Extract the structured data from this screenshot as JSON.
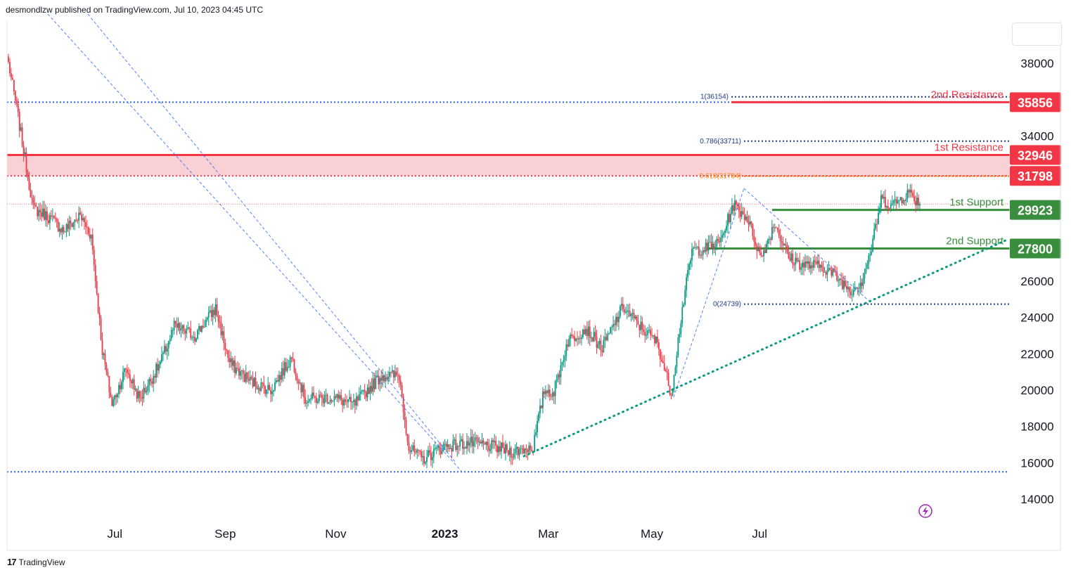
{
  "header": {
    "text": "desmondlzw published on TradingView.com, Jul 10, 2023 04:45 UTC"
  },
  "footer": {
    "logo": "17",
    "brand": "TradingView"
  },
  "colors": {
    "up": "#089981",
    "down": "#f23645",
    "support": "#388e3c",
    "resistance": "#f23645",
    "fib": "#1e53e5",
    "trend": "#089981",
    "zone": "#f8c9cd"
  },
  "chart_data": {
    "type": "candlestick",
    "ylim": [
      13000,
      40000
    ],
    "y_ticks": [
      14000,
      16000,
      18000,
      20000,
      22000,
      24000,
      26000,
      28000,
      30000,
      32000,
      34000,
      36000,
      38000
    ],
    "y_tick_labels": [
      "14000",
      "16000",
      "18000",
      "20000",
      "22000",
      "24000",
      "26000",
      "",
      "",
      "",
      "34000",
      "",
      "38000"
    ],
    "x_ticks": [
      {
        "label": "Jul",
        "bold": false
      },
      {
        "label": "Sep",
        "bold": false
      },
      {
        "label": "Nov",
        "bold": false
      },
      {
        "label": "2023",
        "bold": true
      },
      {
        "label": "Mar",
        "bold": false
      },
      {
        "label": "May",
        "bold": false
      },
      {
        "label": "Jul",
        "bold": false
      }
    ],
    "price_line_levels": [
      {
        "name": "2nd Resistance",
        "value": 35856,
        "label": "35856",
        "kind": "resistance"
      },
      {
        "name": "1st Resistance",
        "value": 32946,
        "label": "32946",
        "kind": "resistance"
      },
      {
        "name": "",
        "value": 31798,
        "label": "31798",
        "kind": "resistance"
      },
      {
        "name": "1st Support",
        "value": 29923,
        "label": "29923",
        "kind": "support"
      },
      {
        "name": "2nd Support",
        "value": 27800,
        "label": "27800",
        "kind": "support"
      }
    ],
    "fib_levels": [
      {
        "label": "1(36154)",
        "value": 36154
      },
      {
        "label": "0.786(33711)",
        "value": 33711
      },
      {
        "label": "0.618(31784)",
        "value": 31784
      },
      {
        "label": "0(24739)",
        "value": 24739
      }
    ],
    "support_low_level": 15500,
    "current_price": 30250,
    "anchors": [
      [
        0,
        38000
      ],
      [
        6,
        35500
      ],
      [
        18,
        30000
      ],
      [
        28,
        29600
      ],
      [
        40,
        28800
      ],
      [
        52,
        29600
      ],
      [
        60,
        28500
      ],
      [
        68,
        22200
      ],
      [
        75,
        19200
      ],
      [
        85,
        21200
      ],
      [
        95,
        19500
      ],
      [
        110,
        21500
      ],
      [
        120,
        23500
      ],
      [
        135,
        23000
      ],
      [
        150,
        24500
      ],
      [
        160,
        21500
      ],
      [
        175,
        20500
      ],
      [
        190,
        20000
      ],
      [
        205,
        21800
      ],
      [
        215,
        19500
      ],
      [
        235,
        19600
      ],
      [
        250,
        19200
      ],
      [
        270,
        20800
      ],
      [
        283,
        20800
      ],
      [
        290,
        16800
      ],
      [
        300,
        16200
      ],
      [
        315,
        16900
      ],
      [
        335,
        17100
      ],
      [
        350,
        16900
      ],
      [
        365,
        16600
      ],
      [
        380,
        16900
      ],
      [
        388,
        20000
      ],
      [
        395,
        19900
      ],
      [
        405,
        22700
      ],
      [
        418,
        23400
      ],
      [
        430,
        22300
      ],
      [
        445,
        24600
      ],
      [
        455,
        23700
      ],
      [
        470,
        22600
      ],
      [
        480,
        19800
      ],
      [
        488,
        24500
      ],
      [
        495,
        27700
      ],
      [
        505,
        27800
      ],
      [
        515,
        28100
      ],
      [
        525,
        30200
      ],
      [
        535,
        29500
      ],
      [
        545,
        27300
      ],
      [
        555,
        29200
      ],
      [
        565,
        27300
      ],
      [
        575,
        26900
      ],
      [
        590,
        26800
      ],
      [
        600,
        26200
      ],
      [
        610,
        25500
      ],
      [
        618,
        26000
      ],
      [
        625,
        27800
      ],
      [
        632,
        30500
      ],
      [
        640,
        30200
      ],
      [
        652,
        30900
      ],
      [
        660,
        30250
      ]
    ]
  }
}
